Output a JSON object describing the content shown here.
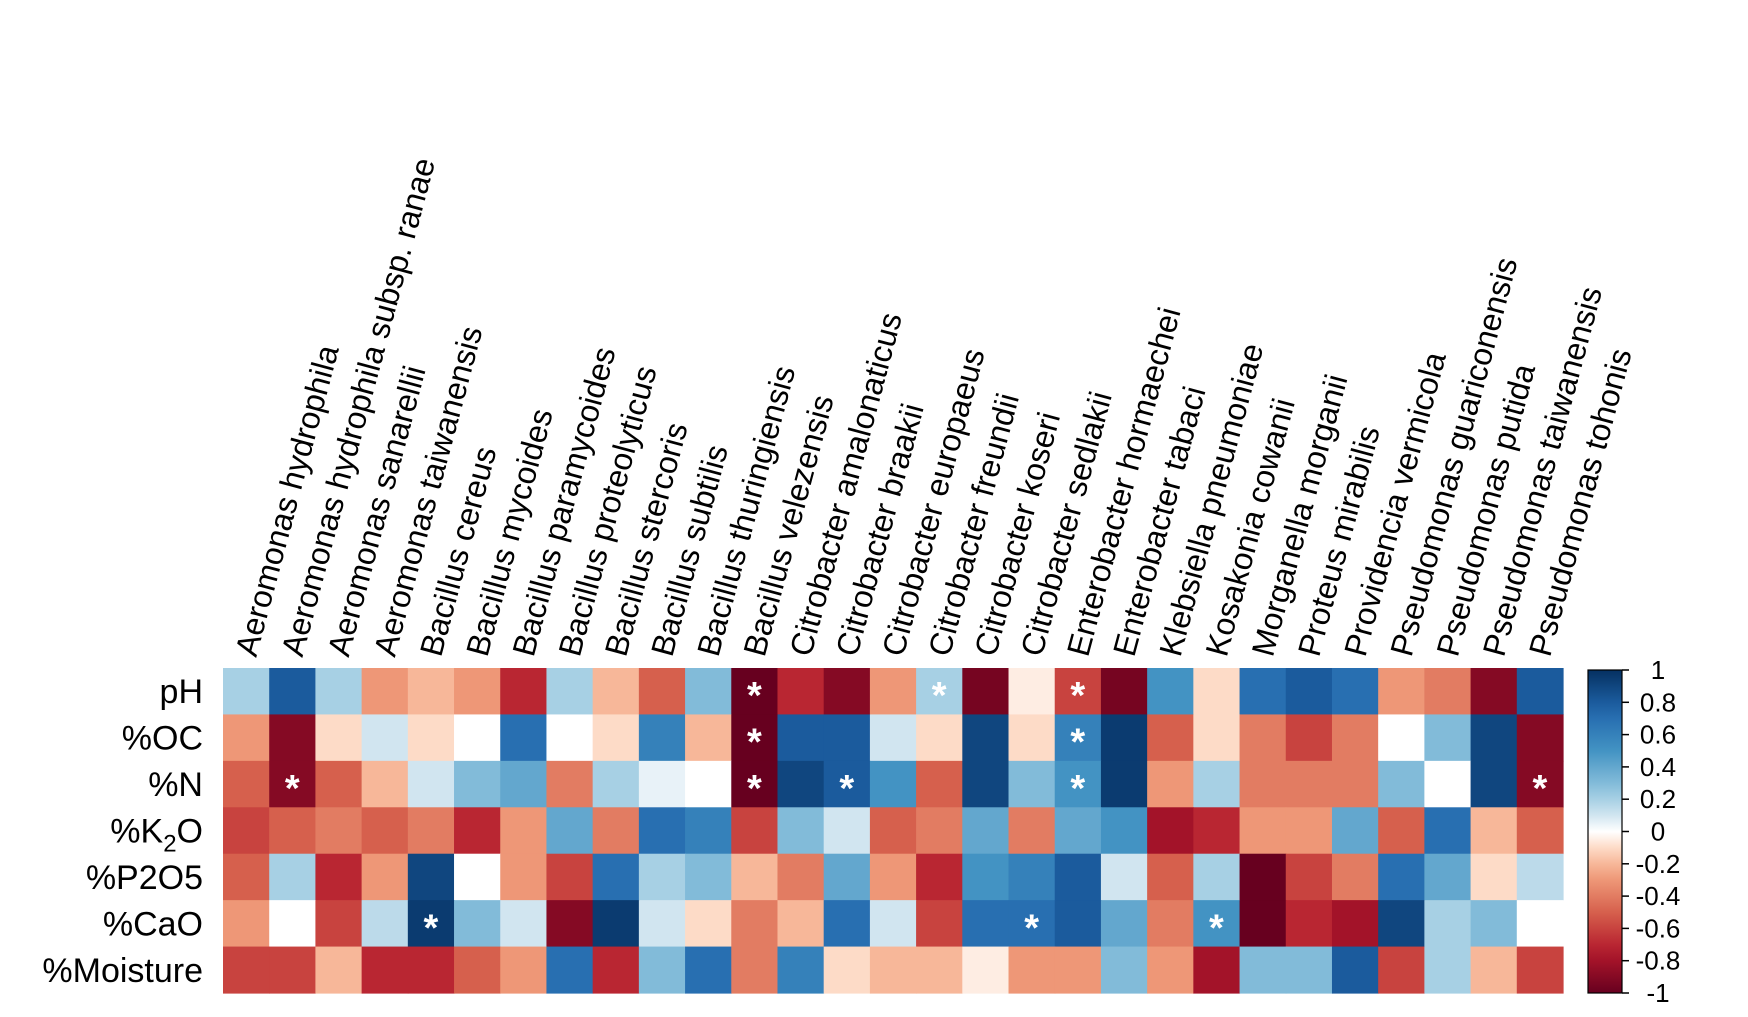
{
  "chart_data": {
    "type": "heatmap",
    "columns": [
      "Aeromonas hydrophila",
      "Aeromonas hydrophila subsp. ranae",
      "Aeromonas sanarellii",
      "Aeromonas taiwanensis",
      "Bacillus cereus",
      "Bacillus mycoides",
      "Bacillus paramycoides",
      "Bacillus proteolyticus",
      "Bacillus stercoris",
      "Bacillus subtilis",
      "Bacillus thuringiensis",
      "Bacillus velezensis",
      "Citrobacter amalonaticus",
      "Citrobacter braakii",
      "Citrobacter europaeus",
      "Citrobacter freundii",
      "Citrobacter koseri",
      "Citrobacter sedlakii",
      "Enterobacter hormaechei",
      "Enterobacter tabaci",
      "Klebsiella pneumoniae",
      "Kosakonia cowanii",
      "Morganella morganii",
      "Proteus mirabilis",
      "Providencia vermicola",
      "Pseudomonas guariconensis",
      "Pseudomonas putida",
      "Pseudomonas taiwanensis",
      "Pseudomonas tohonis"
    ],
    "rows": [
      "pH",
      "%OC",
      "%N",
      "%K2O",
      "%P2O5",
      "%CaO",
      "%Moisture"
    ],
    "row_labels": [
      {
        "main": "pH",
        "sub": "",
        "tail": ""
      },
      {
        "main": "%OC",
        "sub": "",
        "tail": ""
      },
      {
        "main": "%N",
        "sub": "",
        "tail": ""
      },
      {
        "main": "%K",
        "sub": "2",
        "tail": "O"
      },
      {
        "main": "%P2O5",
        "sub": "",
        "tail": ""
      },
      {
        "main": "%CaO",
        "sub": "",
        "tail": ""
      },
      {
        "main": "%Moisture",
        "sub": "",
        "tail": ""
      }
    ],
    "values": [
      [
        0.2,
        0.8,
        0.2,
        -0.3,
        -0.2,
        -0.3,
        -0.7,
        0.2,
        -0.2,
        -0.5,
        0.3,
        -1.0,
        -0.7,
        -0.9,
        -0.3,
        0.2,
        -0.95,
        -0.05,
        -0.6,
        -0.95,
        0.5,
        -0.1,
        0.7,
        0.8,
        0.7,
        -0.3,
        -0.4,
        -0.9,
        0.8
      ],
      [
        -0.3,
        -0.9,
        -0.1,
        0.1,
        -0.1,
        0.0,
        0.7,
        0.0,
        -0.1,
        0.6,
        -0.2,
        -1.0,
        0.8,
        0.8,
        0.1,
        -0.1,
        0.9,
        -0.1,
        0.6,
        0.95,
        -0.5,
        -0.1,
        -0.4,
        -0.6,
        -0.4,
        0.0,
        0.3,
        0.9,
        -0.9
      ],
      [
        -0.5,
        -0.9,
        -0.5,
        -0.2,
        0.1,
        0.3,
        0.4,
        -0.4,
        0.2,
        0.05,
        0.0,
        -1.0,
        0.9,
        0.8,
        0.5,
        -0.5,
        0.9,
        0.3,
        0.5,
        0.95,
        -0.3,
        0.2,
        -0.4,
        -0.4,
        -0.4,
        0.3,
        0.0,
        0.9,
        -0.9
      ],
      [
        -0.6,
        -0.5,
        -0.4,
        -0.5,
        -0.4,
        -0.7,
        -0.3,
        0.4,
        -0.4,
        0.7,
        0.6,
        -0.6,
        0.3,
        0.1,
        -0.5,
        -0.4,
        0.4,
        -0.4,
        0.4,
        0.5,
        -0.8,
        -0.7,
        -0.3,
        -0.3,
        0.4,
        -0.5,
        0.7,
        -0.2,
        -0.5
      ],
      [
        -0.5,
        0.2,
        -0.7,
        -0.3,
        0.9,
        0.0,
        -0.3,
        -0.6,
        0.7,
        0.2,
        0.3,
        -0.2,
        -0.4,
        0.4,
        -0.3,
        -0.7,
        0.5,
        0.6,
        0.8,
        0.1,
        -0.5,
        0.2,
        -1.0,
        -0.6,
        -0.4,
        0.7,
        0.4,
        -0.1,
        0.15
      ],
      [
        -0.3,
        0.0,
        -0.6,
        0.15,
        0.95,
        0.3,
        0.1,
        -0.9,
        0.95,
        0.1,
        -0.1,
        -0.4,
        -0.2,
        0.7,
        0.1,
        -0.6,
        0.7,
        0.7,
        0.8,
        0.4,
        -0.4,
        0.5,
        -1.0,
        -0.7,
        -0.8,
        0.9,
        0.2,
        0.3,
        0.0
      ],
      [
        -0.6,
        -0.6,
        -0.2,
        -0.7,
        -0.7,
        -0.5,
        -0.3,
        0.7,
        -0.7,
        0.3,
        0.7,
        -0.4,
        0.6,
        -0.1,
        -0.2,
        -0.2,
        -0.05,
        -0.3,
        -0.3,
        0.3,
        -0.3,
        -0.8,
        0.3,
        0.3,
        0.8,
        -0.6,
        0.2,
        -0.2,
        -0.6
      ]
    ],
    "significant": [
      [
        0,
        11
      ],
      [
        0,
        15
      ],
      [
        0,
        18
      ],
      [
        1,
        11
      ],
      [
        1,
        18
      ],
      [
        2,
        1
      ],
      [
        2,
        11
      ],
      [
        2,
        13
      ],
      [
        2,
        18
      ],
      [
        2,
        28
      ],
      [
        5,
        4
      ],
      [
        5,
        17
      ],
      [
        5,
        21
      ]
    ],
    "significance_marker": "*",
    "colorbar": {
      "range": [
        -1,
        1
      ],
      "ticks": [
        1,
        0.8,
        0.6,
        0.4,
        0.2,
        0,
        -0.2,
        -0.4,
        -0.6,
        -0.8,
        -1
      ],
      "tick_labels": [
        "1",
        "0.8",
        "0.6",
        "0.4",
        "0.2",
        "0",
        "-0.2",
        "-0.4",
        "-0.6",
        "-0.8",
        "-1"
      ],
      "colors": {
        "low": "#67001f",
        "mid": "#ffffff",
        "high": "#053061"
      }
    },
    "title": "",
    "xlabel": "",
    "ylabel": ""
  }
}
